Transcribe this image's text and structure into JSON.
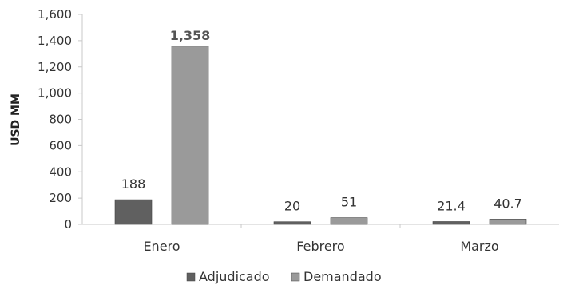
{
  "chart_data": {
    "type": "bar",
    "title": "",
    "xlabel": "",
    "ylabel": "USD MM",
    "categories": [
      "Enero",
      "Febrero",
      "Marzo"
    ],
    "series": [
      {
        "name": "Adjudicado",
        "values": [
          188,
          20,
          21.4
        ],
        "labels": [
          "188",
          "20",
          "21.4"
        ],
        "color": "#606060"
      },
      {
        "name": "Demandado",
        "values": [
          1358,
          51,
          40.7
        ],
        "labels": [
          "1,358",
          "51",
          "40.7"
        ],
        "color": "#9a9a9a"
      }
    ],
    "ylim": [
      0,
      1600
    ],
    "yticks": [
      0,
      200,
      400,
      600,
      800,
      1000,
      1200,
      1400,
      1600
    ],
    "ytick_labels": [
      "0",
      "200",
      "400",
      "600",
      "800",
      "1,000",
      "1,200",
      "1,400",
      "1,600"
    ],
    "grid": false,
    "legend_position": "bottom"
  }
}
